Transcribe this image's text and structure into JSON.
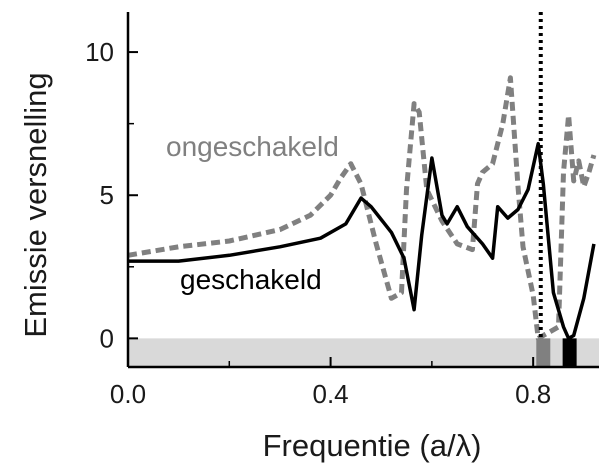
{
  "chart_data": {
    "type": "line",
    "xlabel": "Frequentie (a/λ)",
    "ylabel": "Emissie versnelling",
    "xlim": [
      0.0,
      0.93
    ],
    "ylim": [
      -1.0,
      11.4
    ],
    "x_ticks": [
      0.0,
      0.4,
      0.8
    ],
    "x_tick_labels": [
      "0.0",
      "0.4",
      "0.8"
    ],
    "y_ticks": [
      0,
      5,
      10
    ],
    "y_tick_labels": [
      "0",
      "5",
      "10"
    ],
    "grid": false,
    "series": [
      {
        "name": "ongeschakeld",
        "style": "dashed",
        "color": "#808080",
        "x": [
          0.0,
          0.1,
          0.2,
          0.3,
          0.36,
          0.4,
          0.42,
          0.44,
          0.46,
          0.49,
          0.52,
          0.54,
          0.55,
          0.565,
          0.575,
          0.59,
          0.62,
          0.65,
          0.68,
          0.69,
          0.7,
          0.72,
          0.74,
          0.755,
          0.77,
          0.78,
          0.8,
          0.81,
          0.82,
          0.85,
          0.86,
          0.87,
          0.88,
          0.89,
          0.9,
          0.91,
          0.92
        ],
        "y": [
          2.9,
          3.2,
          3.4,
          3.8,
          4.3,
          5.0,
          5.6,
          6.1,
          5.4,
          3.3,
          1.4,
          1.6,
          5.2,
          8.2,
          7.9,
          5.2,
          4.1,
          3.3,
          3.1,
          5.4,
          5.8,
          6.1,
          7.5,
          9.1,
          5.3,
          3.2,
          1.5,
          0.0,
          0.1,
          0.4,
          5.8,
          7.8,
          5.5,
          6.2,
          5.3,
          5.8,
          6.4
        ]
      },
      {
        "name": "geschakeld",
        "style": "solid",
        "color": "#000000",
        "x": [
          0.0,
          0.1,
          0.2,
          0.3,
          0.38,
          0.43,
          0.46,
          0.48,
          0.52,
          0.545,
          0.565,
          0.58,
          0.6,
          0.62,
          0.63,
          0.65,
          0.67,
          0.7,
          0.72,
          0.73,
          0.75,
          0.77,
          0.79,
          0.81,
          0.82,
          0.84,
          0.86,
          0.87,
          0.88,
          0.9,
          0.92
        ],
        "y": [
          2.7,
          2.7,
          2.9,
          3.2,
          3.5,
          4.0,
          4.9,
          4.6,
          3.7,
          2.8,
          1.0,
          3.6,
          6.3,
          4.3,
          4.0,
          4.6,
          3.9,
          3.3,
          2.8,
          4.6,
          4.2,
          4.5,
          5.2,
          6.8,
          5.4,
          1.6,
          0.4,
          0.0,
          0.1,
          1.4,
          3.3
        ]
      }
    ],
    "annotations": {
      "ongeschakeld_label": "ongeschakeld",
      "geschakeld_label": "geschakeld"
    },
    "reference_line_x": 0.815,
    "shaded_band_y": [
      -1.0,
      0.0
    ],
    "markers_on_band": [
      {
        "x": 0.82,
        "color": "#808080"
      },
      {
        "x": 0.872,
        "color": "#000000"
      }
    ],
    "colors": {
      "band": "#d9d9d9",
      "axis": "#000000",
      "ongeschakeld": "#808080",
      "geschakeld": "#000000"
    }
  }
}
